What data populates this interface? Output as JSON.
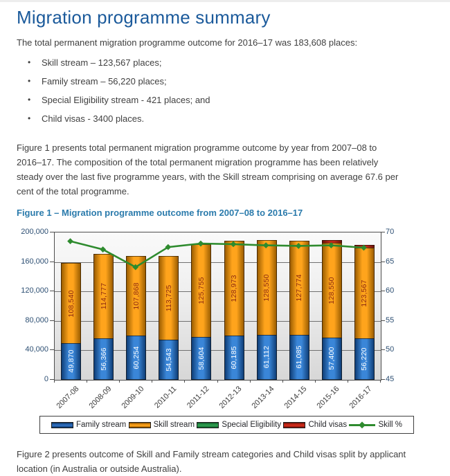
{
  "document": {
    "title": "Migration programme summary",
    "intro": "The total permanent migration programme outcome for 2016–17 was 183,608 places:",
    "bullets": [
      "Skill stream – 123,567 places;",
      "Family stream – 56,220 places;",
      "Special Eligibility stream - 421 places; and",
      "Child visas - 3400 places."
    ],
    "figure1_paragraph": "Figure 1 presents total permanent migration programme outcome by year from 2007–08 to 2016–17.  The composition of the total permanent migration programme has been relatively steady over the last five programme years, with the Skill stream comprising on average 67.6 per cent of the total programme.",
    "figure1_caption": "Figure 1 – Migration programme outcome from 2007–08 to 2016–17",
    "figure2_paragraph": "Figure 2 presents outcome of Skill and Family stream categories and Child visas split by applicant location (in Australia or outside Australia)."
  },
  "colors": {
    "title": "#1b5a9b",
    "caption": "#2b7bac",
    "body_text": "#3f3f3f",
    "axis_label": "#2d4f73",
    "gridline": "#707070"
  },
  "chart_data": {
    "type": "bar",
    "stacked": true,
    "grid": true,
    "categories": [
      "2007-08",
      "2008-09",
      "2009-10",
      "2010-11",
      "2011-12",
      "2012-13",
      "2013-14",
      "2014-15",
      "2015-16",
      "2016-17"
    ],
    "series": [
      {
        "name": "Family stream",
        "color": "#3a86d8",
        "edge": "#0f3e77",
        "label_color": "#ffffff",
        "values": [
          49870,
          56366,
          60254,
          54543,
          58604,
          60185,
          61112,
          61085,
          57400,
          56220
        ],
        "labels": [
          "49,870",
          "56,366",
          "60,254",
          "54,543",
          "58,604",
          "60,185",
          "61,112",
          "61,085",
          "57,400",
          "56,220"
        ]
      },
      {
        "name": "Skill stream",
        "color": "#ffa41c",
        "edge": "#9c5e00",
        "label_color": "#8b2a10",
        "values": [
          108540,
          114777,
          107868,
          113725,
          125755,
          128973,
          128550,
          127774,
          128550,
          123567
        ],
        "labels": [
          "108,540",
          "114,777",
          "107,868",
          "113,725",
          "125,755",
          "128,973",
          "128,550",
          "127,774",
          "128,550",
          "123,567"
        ]
      },
      {
        "name": "Special Eligibility",
        "color": "#2e9e4f",
        "edge": "#145c2c",
        "label_color": "#ffffff",
        "values": [
          0,
          0,
          0,
          0,
          0,
          0,
          0,
          0,
          0,
          421
        ],
        "labels": [
          "",
          "",
          "",
          "",
          "",
          "",
          "",
          "",
          "",
          ""
        ]
      },
      {
        "name": "Child visas",
        "color": "#c0291a",
        "edge": "#6e140b",
        "label_color": "#ffffff",
        "values": [
          0,
          0,
          0,
          0,
          0,
          0,
          0,
          0,
          3500,
          3400
        ],
        "labels": [
          "",
          "",
          "",
          "",
          "",
          "",
          "",
          "",
          "",
          ""
        ]
      }
    ],
    "line_series": {
      "name": "Skill %",
      "color": "#2e8b2e",
      "axis": "right",
      "values": [
        68.4,
        67.0,
        64.0,
        67.4,
        68.0,
        67.9,
        67.7,
        67.6,
        67.7,
        67.3
      ]
    },
    "y_left": {
      "min": 0,
      "max": 200000,
      "tick_labels": [
        "0",
        "40,000",
        "80,000",
        "120,000",
        "160,000",
        "200,000"
      ]
    },
    "y_right": {
      "min": 45,
      "max": 70,
      "tick_labels": [
        "45",
        "50",
        "55",
        "60",
        "65",
        "70"
      ]
    },
    "legend": [
      {
        "label": "Family stream",
        "type": "bar",
        "color": "#2f6fc0",
        "edge": "#0d3461"
      },
      {
        "label": "Skill stream",
        "type": "bar",
        "color": "#ffa41c",
        "edge": "#8a5200"
      },
      {
        "label": "Special Eligibility",
        "type": "bar",
        "color": "#2e9e4f",
        "edge": "#145c2c"
      },
      {
        "label": "Child visas",
        "type": "bar",
        "color": "#d22b1a",
        "edge": "#6e140b"
      },
      {
        "label": "Skill %",
        "type": "line",
        "color": "#2e8b2e"
      }
    ]
  }
}
